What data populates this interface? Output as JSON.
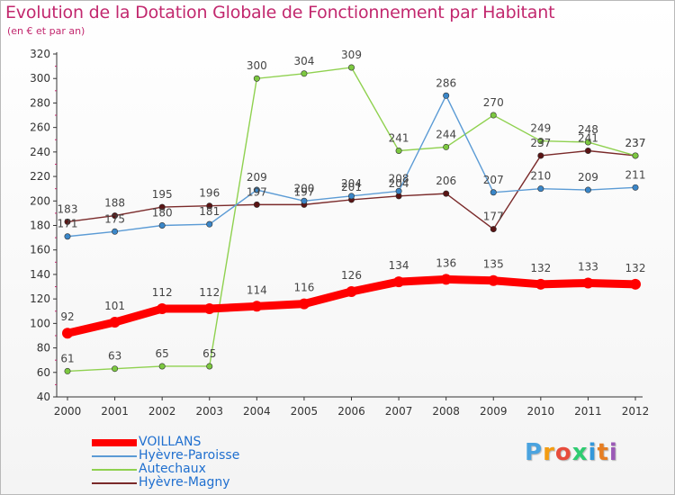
{
  "chart_data": {
    "type": "line",
    "title": "Evolution de la Dotation Globale de Fonctionnement par Habitant",
    "subtitle": "(en € et par an)",
    "x": [
      "2000",
      "2001",
      "2002",
      "2003",
      "2004",
      "2005",
      "2006",
      "2007",
      "2008",
      "2009",
      "2010",
      "2011",
      "2012"
    ],
    "ylim": [
      40,
      320
    ],
    "yticks": [
      40,
      60,
      80,
      100,
      120,
      140,
      160,
      180,
      200,
      220,
      240,
      260,
      280,
      300,
      320
    ],
    "grid": false,
    "legend_position": "bottom-left",
    "series": [
      {
        "name": "VOILLANS",
        "color": "#ff0000",
        "emphasis": true,
        "values": [
          92,
          101,
          112,
          112,
          114,
          116,
          126,
          134,
          136,
          135,
          132,
          133,
          132
        ]
      },
      {
        "name": "Hyèvre-Paroisse",
        "color": "#5b9bd5",
        "marker": "#3a86c8",
        "values": [
          171,
          175,
          180,
          181,
          209,
          200,
          204,
          208,
          286,
          207,
          210,
          209,
          211
        ]
      },
      {
        "name": "Autechaux",
        "color": "#8fd14f",
        "marker": "#7cc840",
        "values": [
          61,
          63,
          65,
          65,
          300,
          304,
          309,
          241,
          244,
          270,
          249,
          248,
          237
        ]
      },
      {
        "name": "Hyèvre-Magny",
        "color": "#7a2a2a",
        "marker": "#5a1414",
        "values": [
          183,
          188,
          195,
          196,
          197,
          197,
          201,
          204,
          206,
          177,
          237,
          241,
          237
        ]
      }
    ]
  },
  "logo": {
    "letters": [
      {
        "ch": "P",
        "color": "#4aa3df"
      },
      {
        "ch": "r",
        "color": "#f39c12"
      },
      {
        "ch": "o",
        "color": "#e74c3c"
      },
      {
        "ch": "x",
        "color": "#2ecc71"
      },
      {
        "ch": "i",
        "color": "#3498db"
      },
      {
        "ch": "t",
        "color": "#e67e22"
      },
      {
        "ch": "i",
        "color": "#9b59b6"
      }
    ]
  }
}
